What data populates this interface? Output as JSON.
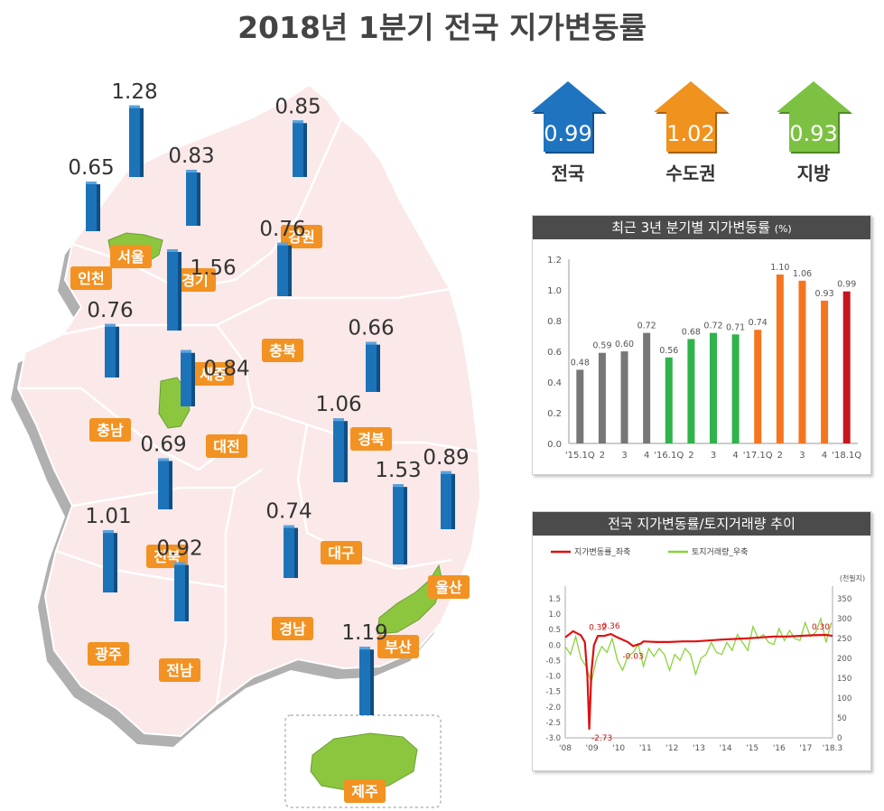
{
  "title": "2018년 1분기 전국 지가변동률",
  "colors": {
    "bar_blue": "#1d73b8",
    "label_orange": "#f29222",
    "region_green": "#8cc63f",
    "map_fill": "#fbe8e8",
    "gray_bar": "#777777",
    "green_bar": "#2fb34a",
    "orange_bar": "#f5751f",
    "red_bar": "#c4171d",
    "line_red": "#e01010",
    "line_green": "#8cd23c"
  },
  "summary": [
    {
      "value": "0.99",
      "label": "전국",
      "color": "#1f74c0"
    },
    {
      "value": "1.02",
      "label": "수도권",
      "color": "#f0921e"
    },
    {
      "value": "0.93",
      "label": "지방",
      "color": "#7cc142"
    }
  ],
  "regions": [
    {
      "name": "서울",
      "value": 1.28,
      "value_text": "1.28"
    },
    {
      "name": "인천",
      "value": 0.65,
      "value_text": "0.65"
    },
    {
      "name": "경기",
      "value": 0.83,
      "value_text": "0.83"
    },
    {
      "name": "강원",
      "value": 0.85,
      "value_text": "0.85"
    },
    {
      "name": "충북",
      "value": 0.76,
      "value_text": "0.76"
    },
    {
      "name": "세종",
      "value": 1.56,
      "value_text": "1.56"
    },
    {
      "name": "충남",
      "value": 0.76,
      "value_text": "0.76"
    },
    {
      "name": "대전",
      "value": 0.84,
      "value_text": "0.84"
    },
    {
      "name": "경북",
      "value": 0.66,
      "value_text": "0.66"
    },
    {
      "name": "대구",
      "value": 1.06,
      "value_text": "1.06"
    },
    {
      "name": "전북",
      "value": 0.69,
      "value_text": "0.69"
    },
    {
      "name": "울산",
      "value": 0.89,
      "value_text": "0.89"
    },
    {
      "name": "부산",
      "value": 1.53,
      "value_text": "1.53"
    },
    {
      "name": "경남",
      "value": 0.74,
      "value_text": "0.74"
    },
    {
      "name": "광주",
      "value": 1.01,
      "value_text": "1.01"
    },
    {
      "name": "전남",
      "value": 0.92,
      "value_text": "0.92"
    },
    {
      "name": "제주",
      "value": 1.19,
      "value_text": "1.19"
    }
  ],
  "chart_data": [
    {
      "type": "bar",
      "title": "최근 3년 분기별 지가변동률",
      "title_unit": "(%)",
      "categories": [
        "'15.1Q",
        "2",
        "3",
        "4",
        "'16.1Q",
        "2",
        "3",
        "4",
        "'17.1Q",
        "2",
        "3",
        "4",
        "'18.1Q"
      ],
      "values": [
        0.48,
        0.59,
        0.6,
        0.72,
        0.56,
        0.68,
        0.72,
        0.71,
        0.74,
        1.1,
        1.06,
        0.93,
        0.99
      ],
      "value_labels": [
        "0.48",
        "0.59",
        "0.60",
        "0.72",
        "0.56",
        "0.68",
        "0.72",
        "0.71",
        "0.74",
        "1.10",
        "1.06",
        "0.93",
        "0.99"
      ],
      "bar_colors": [
        "#777777",
        "#777777",
        "#777777",
        "#777777",
        "#2fb34a",
        "#2fb34a",
        "#2fb34a",
        "#2fb34a",
        "#f5751f",
        "#f5751f",
        "#f5751f",
        "#f5751f",
        "#c4171d"
      ],
      "ylim": [
        0,
        1.2
      ],
      "yticks": [
        "0.0",
        "0.2",
        "0.4",
        "0.6",
        "0.8",
        "1.0",
        "1.2"
      ],
      "grid": false
    },
    {
      "type": "line",
      "title": "전국 지가변동률/토지거래량 추이",
      "legend": [
        "지가변동률_좌축",
        "토지거래량_우축"
      ],
      "legend_position": "top-left",
      "xticks": [
        "'08",
        "'09",
        "'10",
        "'11",
        "'12",
        "'13",
        "'14",
        "'15",
        "'16",
        "'17",
        "'18.3"
      ],
      "x_range": [
        2008.0,
        2018.25
      ],
      "left_ylim": [
        -3.0,
        1.5
      ],
      "left_yticks": [
        "1.5",
        "1.0",
        "0.5",
        "0.0",
        "-0.5",
        "-1.0",
        "-1.5",
        "-2.0",
        "-2.5",
        "-3.0"
      ],
      "right_ylim": [
        0,
        350
      ],
      "right_yticks": [
        "350",
        "300",
        "250",
        "200",
        "150",
        "100",
        "50",
        "0"
      ],
      "right_unit": "(천필지)",
      "annotations": [
        "0.32",
        "0.36",
        "-2.73",
        "-0.03",
        "0.30"
      ],
      "series": [
        {
          "name": "지가변동률_좌축",
          "axis": "left",
          "color": "#e01010",
          "x": [
            2008.0,
            2008.3,
            2008.6,
            2008.75,
            2008.85,
            2008.92,
            2009.0,
            2009.1,
            2009.25,
            2009.5,
            2009.75,
            2010.0,
            2010.4,
            2010.6,
            2010.9,
            2011.0,
            2011.5,
            2012.0,
            2012.5,
            2013.0,
            2013.5,
            2014.0,
            2014.5,
            2015.0,
            2015.5,
            2016.0,
            2016.5,
            2017.0,
            2017.5,
            2018.0,
            2018.25
          ],
          "y": [
            0.25,
            0.45,
            0.32,
            0.1,
            -1.0,
            -2.73,
            -0.9,
            0.0,
            0.3,
            0.3,
            0.36,
            0.25,
            0.1,
            -0.03,
            0.05,
            0.12,
            0.1,
            0.1,
            0.12,
            0.12,
            0.15,
            0.18,
            0.2,
            0.22,
            0.25,
            0.28,
            0.28,
            0.3,
            0.32,
            0.33,
            0.3
          ]
        },
        {
          "name": "토지거래량_우축",
          "axis": "right",
          "color": "#8cd23c",
          "x": [
            2008.0,
            2008.2,
            2008.4,
            2008.6,
            2008.8,
            2009.0,
            2009.2,
            2009.4,
            2009.6,
            2009.8,
            2010.0,
            2010.2,
            2010.4,
            2010.6,
            2010.8,
            2011.0,
            2011.2,
            2011.4,
            2011.6,
            2011.8,
            2012.0,
            2012.2,
            2012.4,
            2012.6,
            2012.8,
            2013.0,
            2013.2,
            2013.4,
            2013.6,
            2013.8,
            2014.0,
            2014.2,
            2014.4,
            2014.6,
            2014.8,
            2015.0,
            2015.2,
            2015.4,
            2015.6,
            2015.8,
            2016.0,
            2016.2,
            2016.4,
            2016.6,
            2016.8,
            2017.0,
            2017.2,
            2017.4,
            2017.6,
            2017.8,
            2018.0,
            2018.2
          ],
          "y": [
            230,
            210,
            255,
            200,
            180,
            140,
            200,
            230,
            215,
            250,
            195,
            170,
            205,
            215,
            235,
            180,
            225,
            205,
            225,
            210,
            170,
            210,
            195,
            225,
            210,
            160,
            200,
            210,
            240,
            215,
            210,
            240,
            220,
            260,
            240,
            220,
            280,
            250,
            260,
            240,
            235,
            275,
            245,
            270,
            250,
            245,
            290,
            255,
            265,
            300,
            240,
            290
          ]
        }
      ]
    }
  ]
}
